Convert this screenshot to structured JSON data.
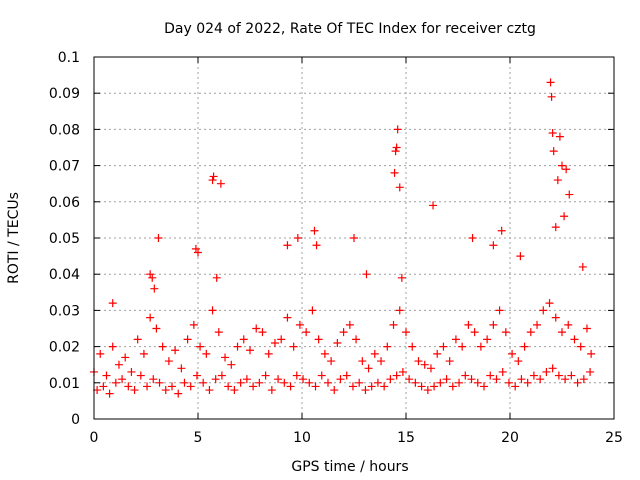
{
  "chart_data": {
    "type": "scatter",
    "title": "Day 024 of 2022, Rate Of TEC Index for receiver cztg",
    "xlabel": "GPS time / hours",
    "ylabel": "ROTI / TECUs",
    "xlim": [
      0,
      25
    ],
    "ylim": [
      0,
      0.1
    ],
    "x_ticks": [
      0,
      5,
      10,
      15,
      20,
      25
    ],
    "x_tick_labels": [
      "0",
      "5",
      "10",
      "15",
      "20",
      "25"
    ],
    "y_ticks": [
      0,
      0.01,
      0.02,
      0.03,
      0.04,
      0.05,
      0.06,
      0.07,
      0.08,
      0.09,
      0.1
    ],
    "y_tick_labels": [
      "0",
      "0.01",
      "0.02",
      "0.03",
      "0.04",
      "0.05",
      "0.06",
      "0.07",
      "0.08",
      "0.09",
      "0.1"
    ],
    "grid": true,
    "marker": "+",
    "series": [
      {
        "name": "ROTI",
        "color": "#ff0000",
        "x": [
          0.0,
          0.3,
          0.6,
          0.9,
          1.2,
          1.5,
          1.8,
          2.1,
          2.4,
          2.7,
          3.0,
          3.3,
          3.6,
          3.9,
          4.2,
          4.5,
          4.8,
          5.1,
          5.4,
          5.7,
          6.0,
          6.3,
          6.6,
          6.9,
          7.2,
          7.5,
          7.8,
          8.1,
          8.4,
          8.7,
          9.0,
          9.3,
          9.6,
          9.9,
          10.2,
          10.5,
          10.8,
          11.1,
          11.4,
          11.7,
          12.0,
          12.3,
          12.6,
          12.9,
          13.2,
          13.5,
          13.8,
          14.1,
          14.4,
          14.7,
          15.0,
          15.3,
          15.6,
          15.9,
          16.2,
          16.5,
          16.8,
          17.1,
          17.4,
          17.7,
          18.0,
          18.3,
          18.6,
          18.9,
          19.2,
          19.5,
          19.8,
          20.1,
          20.4,
          20.7,
          21.0,
          21.3,
          21.6,
          21.9,
          22.2,
          22.5,
          22.8,
          23.1,
          23.4,
          23.7,
          23.9,
          0.15,
          0.45,
          0.75,
          1.05,
          1.35,
          1.65,
          1.95,
          2.25,
          2.55,
          2.85,
          3.15,
          3.45,
          3.75,
          4.05,
          4.35,
          4.65,
          4.95,
          5.25,
          5.55,
          5.85,
          6.15,
          6.45,
          6.75,
          7.05,
          7.35,
          7.65,
          7.95,
          8.25,
          8.55,
          8.85,
          9.15,
          9.45,
          9.75,
          10.05,
          10.35,
          10.65,
          10.95,
          11.25,
          11.55,
          11.85,
          12.15,
          12.45,
          12.75,
          13.05,
          13.35,
          13.65,
          13.95,
          14.25,
          14.55,
          14.85,
          15.15,
          15.45,
          15.75,
          16.05,
          16.35,
          16.65,
          16.95,
          17.25,
          17.55,
          17.85,
          18.15,
          18.45,
          18.75,
          19.05,
          19.35,
          19.65,
          19.95,
          20.25,
          20.55,
          20.85,
          21.15,
          21.45,
          21.75,
          22.05,
          22.35,
          22.65,
          22.95,
          23.25,
          23.55,
          23.85,
          0.9,
          2.7,
          2.9,
          3.1,
          4.9,
          5.0,
          5.7,
          5.75,
          6.1,
          9.3,
          9.8,
          10.6,
          10.7,
          12.5,
          13.1,
          14.45,
          14.5,
          14.55,
          14.6,
          14.7,
          16.3,
          18.2,
          19.2,
          19.6,
          21.95,
          22.0,
          22.05,
          22.1,
          22.2,
          22.3,
          22.4,
          22.5,
          22.6,
          22.7,
          22.85,
          14.8,
          2.8,
          5.9,
          23.5,
          20.5
        ],
        "y": [
          0.013,
          0.018,
          0.012,
          0.02,
          0.015,
          0.017,
          0.013,
          0.022,
          0.018,
          0.028,
          0.025,
          0.02,
          0.016,
          0.019,
          0.014,
          0.022,
          0.026,
          0.02,
          0.018,
          0.03,
          0.024,
          0.017,
          0.015,
          0.02,
          0.022,
          0.019,
          0.025,
          0.024,
          0.018,
          0.021,
          0.022,
          0.028,
          0.02,
          0.026,
          0.024,
          0.03,
          0.022,
          0.018,
          0.016,
          0.021,
          0.024,
          0.026,
          0.022,
          0.016,
          0.014,
          0.018,
          0.016,
          0.02,
          0.026,
          0.03,
          0.024,
          0.02,
          0.016,
          0.015,
          0.014,
          0.018,
          0.02,
          0.016,
          0.022,
          0.02,
          0.026,
          0.024,
          0.02,
          0.022,
          0.026,
          0.03,
          0.024,
          0.018,
          0.016,
          0.02,
          0.024,
          0.026,
          0.03,
          0.032,
          0.028,
          0.024,
          0.026,
          0.022,
          0.02,
          0.025,
          0.018,
          0.008,
          0.009,
          0.007,
          0.01,
          0.011,
          0.009,
          0.008,
          0.012,
          0.009,
          0.011,
          0.01,
          0.008,
          0.009,
          0.007,
          0.01,
          0.009,
          0.012,
          0.01,
          0.008,
          0.011,
          0.012,
          0.009,
          0.008,
          0.01,
          0.011,
          0.009,
          0.01,
          0.012,
          0.008,
          0.011,
          0.01,
          0.009,
          0.012,
          0.011,
          0.01,
          0.009,
          0.012,
          0.01,
          0.008,
          0.011,
          0.012,
          0.009,
          0.01,
          0.008,
          0.009,
          0.01,
          0.009,
          0.011,
          0.012,
          0.013,
          0.011,
          0.01,
          0.009,
          0.008,
          0.009,
          0.01,
          0.011,
          0.009,
          0.01,
          0.012,
          0.011,
          0.01,
          0.009,
          0.012,
          0.011,
          0.013,
          0.01,
          0.009,
          0.011,
          0.01,
          0.012,
          0.011,
          0.013,
          0.014,
          0.012,
          0.011,
          0.012,
          0.01,
          0.011,
          0.013,
          0.032,
          0.04,
          0.036,
          0.05,
          0.047,
          0.046,
          0.066,
          0.067,
          0.065,
          0.048,
          0.05,
          0.052,
          0.048,
          0.05,
          0.04,
          0.068,
          0.074,
          0.075,
          0.08,
          0.064,
          0.059,
          0.05,
          0.048,
          0.052,
          0.093,
          0.089,
          0.079,
          0.074,
          0.053,
          0.066,
          0.078,
          0.07,
          0.056,
          0.069,
          0.062,
          0.039,
          0.039,
          0.039,
          0.042,
          0.045
        ]
      }
    ]
  }
}
